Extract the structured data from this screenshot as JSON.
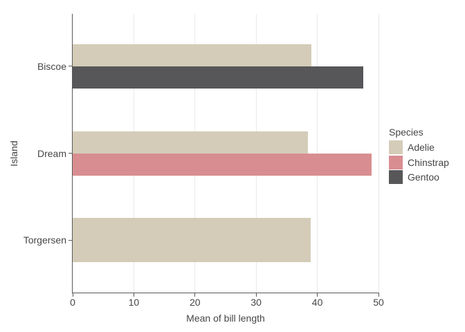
{
  "chart_data": {
    "type": "bar",
    "orientation": "horizontal",
    "title": "",
    "xlabel": "Mean of bill length",
    "ylabel": "Island",
    "categories": [
      "Biscoe",
      "Dream",
      "Torgersen"
    ],
    "series": [
      {
        "name": "Adelie",
        "color": "#d4ccb8",
        "values": [
          38.98,
          38.5,
          38.95
        ]
      },
      {
        "name": "Chinstrap",
        "color": "#d88e91",
        "values": [
          null,
          48.83,
          null
        ]
      },
      {
        "name": "Gentoo",
        "color": "#57575a",
        "values": [
          47.5,
          null,
          null
        ]
      }
    ],
    "xlim": [
      0,
      50
    ],
    "xticks": [
      0,
      10,
      20,
      30,
      40,
      50
    ],
    "grid": "vertical",
    "legend": {
      "title": "Species",
      "position": "right"
    },
    "colors": {
      "background": "#ffffff",
      "axis": "#58585a",
      "gridline": "#eaeaea",
      "text": "#454545"
    }
  }
}
